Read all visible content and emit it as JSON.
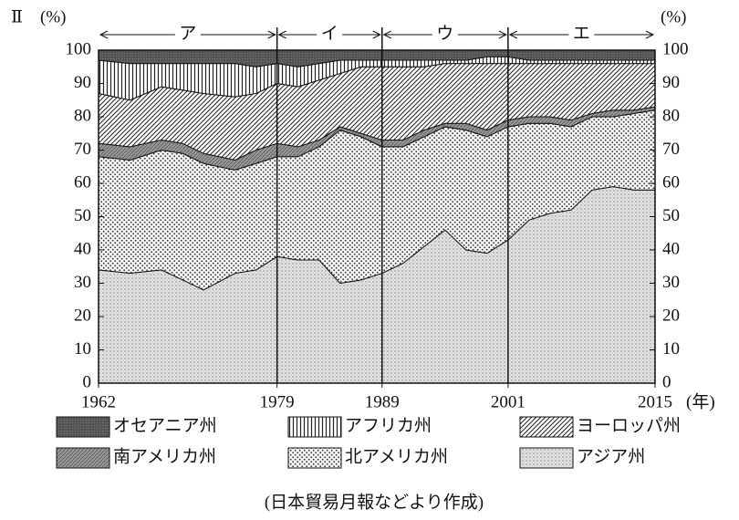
{
  "chart_data": {
    "type": "stacked_area",
    "panel_label": "Ⅱ",
    "y_unit": "(%)",
    "y2_unit": "(%)",
    "x_unit": "(年)",
    "source": "(日本貿易月報などより作成)",
    "x": [
      1962,
      1965,
      1968,
      1970,
      1972,
      1975,
      1977,
      1979,
      1981,
      1983,
      1985,
      1987,
      1989,
      1991,
      1993,
      1995,
      1997,
      1999,
      2001,
      2003,
      2005,
      2007,
      2009,
      2011,
      2013,
      2015
    ],
    "xlim": [
      1962,
      2015
    ],
    "xticks": [
      1962,
      1979,
      1989,
      2001,
      2015
    ],
    "ylim": [
      0,
      100
    ],
    "yticks": [
      0,
      10,
      20,
      30,
      40,
      50,
      60,
      70,
      80,
      90,
      100
    ],
    "y2lim": [
      0,
      100
    ],
    "y2ticks": [
      0,
      10,
      20,
      30,
      40,
      50,
      60,
      70,
      80,
      90,
      100
    ],
    "periods": [
      {
        "label": "ア",
        "start": 1962,
        "end": 1979
      },
      {
        "label": "イ",
        "start": 1979,
        "end": 1989
      },
      {
        "label": "ウ",
        "start": 1989,
        "end": 2001
      },
      {
        "label": "エ",
        "start": 2001,
        "end": 2015
      }
    ],
    "series": [
      {
        "name": "アジア州",
        "color": "#d8d8d8",
        "values": [
          34,
          33,
          34,
          31,
          28,
          33,
          34,
          38,
          37,
          37,
          30,
          31,
          33,
          36,
          41,
          46,
          40,
          39,
          43,
          49,
          51,
          52,
          58,
          59,
          58,
          58
        ]
      },
      {
        "name": "北アメリカ州",
        "color": "#f4f4f4",
        "values": [
          34,
          34,
          36,
          38,
          38,
          31,
          32,
          30,
          31,
          34,
          46,
          43,
          38,
          35,
          33,
          31,
          36,
          35,
          34,
          29,
          27,
          25,
          22,
          21,
          23,
          24
        ]
      },
      {
        "name": "南アメリカ州",
        "color": "#9a9a9a",
        "values": [
          4,
          4,
          3,
          3,
          3,
          3,
          4,
          4,
          3,
          2,
          1,
          1,
          2,
          2,
          2,
          1,
          2,
          2,
          2,
          2,
          2,
          2,
          1,
          2,
          1,
          1
        ]
      },
      {
        "name": "ヨーロッパ州",
        "color": "#ffffff",
        "values": [
          15,
          14,
          16,
          16,
          18,
          19,
          17,
          18,
          18,
          18,
          16,
          20,
          22,
          22,
          19,
          18,
          18,
          20,
          17,
          16,
          16,
          17,
          15,
          14,
          14,
          13
        ]
      },
      {
        "name": "アフリカ州",
        "color": "#ffffff",
        "values": [
          10,
          11,
          7,
          8,
          9,
          10,
          8,
          6,
          6,
          5,
          4,
          2,
          2,
          2,
          2,
          1,
          1,
          2,
          2,
          1,
          1,
          1,
          1,
          1,
          1,
          1
        ]
      },
      {
        "name": "オセアニア州",
        "color": "#555555",
        "values": [
          3,
          4,
          4,
          4,
          4,
          4,
          5,
          4,
          5,
          4,
          3,
          3,
          3,
          3,
          3,
          3,
          3,
          2,
          2,
          3,
          3,
          3,
          3,
          3,
          3,
          3
        ]
      }
    ]
  }
}
